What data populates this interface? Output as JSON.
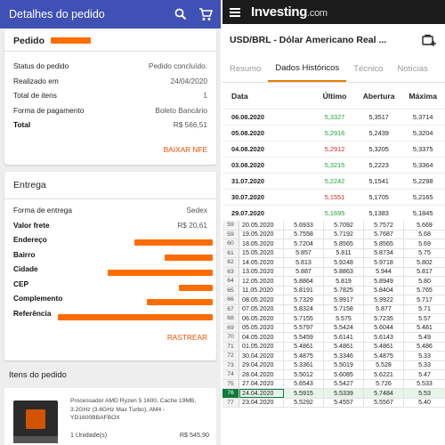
{
  "left": {
    "appbar_title": "Detalhes do pedido",
    "order_card": {
      "title_prefix": "Pedido",
      "rows": [
        {
          "label": "Status do pedido",
          "value": "Pedido concluído."
        },
        {
          "label": "Realizado em",
          "value": "24/04/2020"
        },
        {
          "label": "Total de itens",
          "value": "1"
        },
        {
          "label": "Forma de pagamento",
          "value": "Boleto Bancário"
        },
        {
          "label": "Total",
          "value": "R$ 566,51"
        }
      ],
      "action": "BAIXAR NFE"
    },
    "delivery_card": {
      "title": "Entrega",
      "rows": [
        {
          "label": "Forma de entrega",
          "value": "Sedex"
        },
        {
          "label": "Valor frete",
          "value": "R$ 20,61"
        },
        {
          "label": "Endereço",
          "value": ""
        },
        {
          "label": "Bairro",
          "value": ""
        },
        {
          "label": "Cidade",
          "value": ""
        },
        {
          "label": "CEP",
          "value": ""
        },
        {
          "label": "Complemento",
          "value": ""
        },
        {
          "label": "Referência",
          "value": ""
        }
      ],
      "action": "RASTREAR"
    },
    "items_header": "Itens do pedido",
    "item": {
      "description": "Processador AMD Ryzen 5 1600, Cache 19MB, 3.2GHz (3.6GHz Max Turbo), AM4 - YD1600BBAFBOX",
      "quantity": "1 Unidade(s)",
      "price": "R$ 545,90"
    }
  },
  "right": {
    "logo_main": "Investing",
    "logo_suffix": ".com",
    "pair_title": "USD/BRL - Dólar Americano Real ...",
    "tabs": [
      "Resumo",
      "Dados Históricos",
      "Técnico",
      "Notícias"
    ],
    "active_tab": 1,
    "columns": [
      "Data",
      "Último",
      "Abertura",
      "Máxima"
    ],
    "history_rows": [
      {
        "date": "06.08.2020",
        "last": "5,3327",
        "open": "5,3517",
        "high": "5,3714",
        "trend": "g"
      },
      {
        "date": "05.08.2020",
        "last": "5,2916",
        "open": "5,2439",
        "high": "5,3204",
        "trend": "g"
      },
      {
        "date": "04.08.2020",
        "last": "5,2912",
        "open": "5,3205",
        "high": "5,3375",
        "trend": "r"
      },
      {
        "date": "03.08.2020",
        "last": "5,3215",
        "open": "5,2223",
        "high": "5,3364",
        "trend": "g"
      },
      {
        "date": "31.07.2020",
        "last": "5,2242",
        "open": "5,1541",
        "high": "5,2298",
        "trend": "g"
      },
      {
        "date": "30.07.2020",
        "last": "5,1551",
        "open": "5,1705",
        "high": "5,2165",
        "trend": "r"
      },
      {
        "date": "29.07.2020",
        "last": "5,1695",
        "open": "5,1383",
        "high": "5,1845",
        "trend": "g"
      }
    ],
    "sheet_rows": [
      {
        "n": "59",
        "d": "20.05.2020",
        "a": "5.6933",
        "b": "5.7092",
        "c": "5.7572",
        "e": "5.669"
      },
      {
        "n": "59",
        "d": "19.05.2020",
        "a": "5.7558",
        "b": "5.7192",
        "c": "5.7687",
        "e": "5.68"
      },
      {
        "n": "60",
        "d": "18.05.2020",
        "a": "5.7204",
        "b": "5.8565",
        "c": "5.8565",
        "e": "5.69"
      },
      {
        "n": "61",
        "d": "15.05.2020",
        "a": "5.857",
        "b": "5.811",
        "c": "5.8734",
        "e": "5.75"
      },
      {
        "n": "62",
        "d": "14.05.2020",
        "a": "5.813",
        "b": "5.9248",
        "c": "5.9718",
        "e": "5.802"
      },
      {
        "n": "63",
        "d": "13.05.2020",
        "a": "5.887",
        "b": "5.8863",
        "c": "5.944",
        "e": "5.817"
      },
      {
        "n": "64",
        "d": "12.05.2020",
        "a": "5.8864",
        "b": "5.819",
        "c": "5.8949",
        "e": "5.80"
      },
      {
        "n": "65",
        "d": "11.05.2020",
        "a": "5.8191",
        "b": "5.7825",
        "c": "5.8404",
        "e": "5.765"
      },
      {
        "n": "66",
        "d": "08.05.2020",
        "a": "5.7329",
        "b": "5.9917",
        "c": "5.9922",
        "e": "5.717"
      },
      {
        "n": "67",
        "d": "07.05.2020",
        "a": "5.8324",
        "b": "5.7158",
        "c": "5.877",
        "e": "5.71"
      },
      {
        "n": "68",
        "d": "06.05.2020",
        "a": "5.7155",
        "b": "5.575",
        "c": "5.7235",
        "e": "5.57"
      },
      {
        "n": "69",
        "d": "05.05.2020",
        "a": "5.5797",
        "b": "5.5424",
        "c": "5.6044",
        "e": "5.481"
      },
      {
        "n": "70",
        "d": "04.05.2020",
        "a": "5.5459",
        "b": "5.6141",
        "c": "5.6143",
        "e": "5.49"
      },
      {
        "n": "71",
        "d": "01.05.2020",
        "a": "5.4861",
        "b": "5.4861",
        "c": "5.4861",
        "e": "5.486"
      },
      {
        "n": "72",
        "d": "30.04.2020",
        "a": "5.4875",
        "b": "5.3346",
        "c": "5.4875",
        "e": "5.33"
      },
      {
        "n": "73",
        "d": "29.04.2020",
        "a": "5.3361",
        "b": "5.5019",
        "c": "5.528",
        "e": "5.33"
      },
      {
        "n": "74",
        "d": "28.04.2020",
        "a": "5.5012",
        "b": "5.6085",
        "c": "5.6221",
        "e": "5.47"
      },
      {
        "n": "75",
        "d": "27.04.2020",
        "a": "5.6543",
        "b": "5.5427",
        "c": "5.726",
        "e": "5.533"
      },
      {
        "n": "76",
        "d": "24.04.2020",
        "a": "5.5915",
        "b": "5.5339",
        "c": "5.7484",
        "e": "5.53",
        "selected": true
      },
      {
        "n": "77",
        "d": "23.04.2020",
        "a": "5.5292",
        "b": "5.4557",
        "c": "5.5567",
        "e": "5.40"
      }
    ]
  }
}
